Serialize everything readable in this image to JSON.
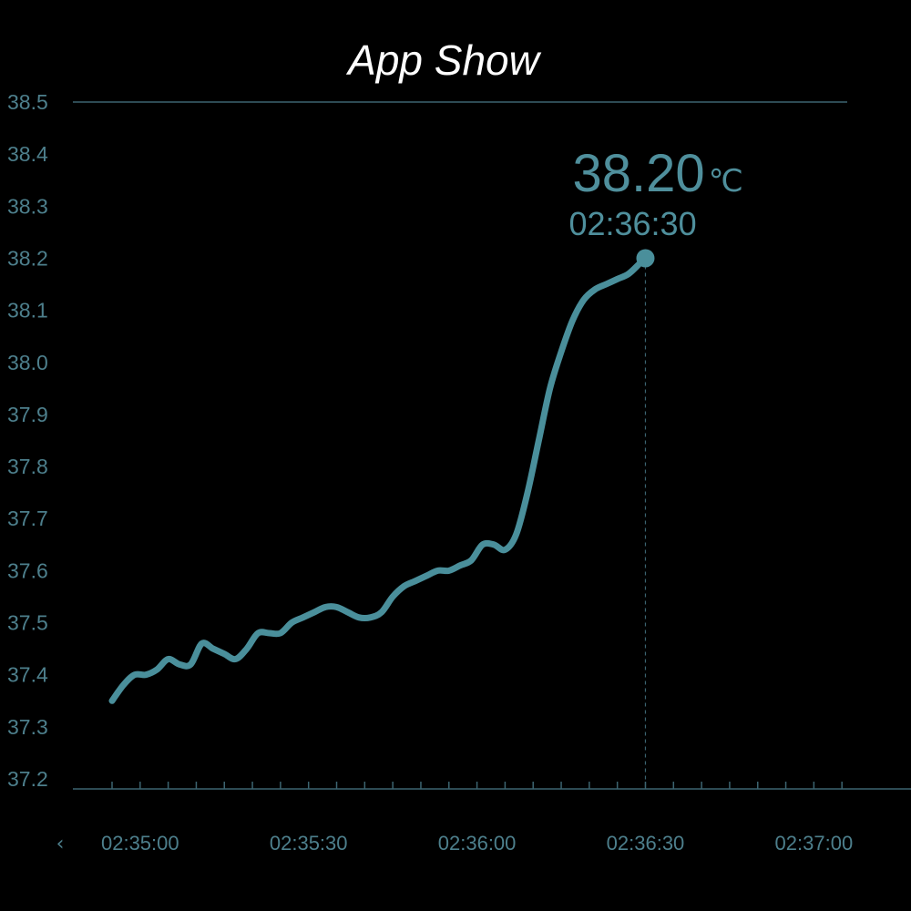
{
  "app": {
    "title": "App Show"
  },
  "colors": {
    "background": "#000000",
    "line": "#4a8f9b",
    "axis": "#3c6470",
    "label": "#4d7f8c",
    "readout": "#4f8f9c"
  },
  "nav": {
    "prev_icon": "chevron-left-icon",
    "prev_glyph": "‹"
  },
  "readout": {
    "value": "38.20",
    "unit": "℃",
    "time": "02:36:30"
  },
  "chart_data": {
    "type": "line",
    "title": "",
    "xlabel": "",
    "ylabel": "",
    "ylim": [
      37.2,
      38.5
    ],
    "xlim": [
      "02:34:55",
      "02:37:10"
    ],
    "y_ticks": [
      "37.2",
      "37.3",
      "37.4",
      "37.5",
      "37.6",
      "37.7",
      "37.8",
      "37.9",
      "38.0",
      "38.1",
      "38.2",
      "38.3",
      "38.4",
      "38.5"
    ],
    "x_tick_labels": [
      "02:35:00",
      "02:35:30",
      "02:36:00",
      "02:36:30",
      "02:37:00"
    ],
    "x_minor_ticks": [
      "02:34:55",
      "02:35:00",
      "02:35:05",
      "02:35:10",
      "02:35:15",
      "02:35:20",
      "02:35:25",
      "02:35:30",
      "02:35:35",
      "02:35:40",
      "02:35:45",
      "02:35:50",
      "02:35:55",
      "02:36:00",
      "02:36:05",
      "02:36:10",
      "02:36:15",
      "02:36:20",
      "02:36:25",
      "02:36:30",
      "02:36:35",
      "02:36:40",
      "02:36:45",
      "02:36:50",
      "02:36:55",
      "02:37:00",
      "02:37:05"
    ],
    "grid": false,
    "series": [
      {
        "x": [
          "02:34:55",
          "02:34:57",
          "02:34:59",
          "02:35:01",
          "02:35:03",
          "02:35:05",
          "02:35:07",
          "02:35:09",
          "02:35:11",
          "02:35:13",
          "02:35:15",
          "02:35:17",
          "02:35:19",
          "02:35:21",
          "02:35:23",
          "02:35:25",
          "02:35:27",
          "02:35:29",
          "02:35:31",
          "02:35:33",
          "02:35:35",
          "02:35:37",
          "02:35:39",
          "02:35:41",
          "02:35:43",
          "02:35:45",
          "02:35:47",
          "02:35:49",
          "02:35:51",
          "02:35:53",
          "02:35:55",
          "02:35:57",
          "02:35:59",
          "02:36:01",
          "02:36:03",
          "02:36:05",
          "02:36:07",
          "02:36:09",
          "02:36:11",
          "02:36:13",
          "02:36:15",
          "02:36:17",
          "02:36:19",
          "02:36:21",
          "02:36:23",
          "02:36:25",
          "02:36:27",
          "02:36:29",
          "02:36:30"
        ],
        "y": [
          37.35,
          37.38,
          37.4,
          37.4,
          37.41,
          37.43,
          37.42,
          37.42,
          37.46,
          37.45,
          37.44,
          37.43,
          37.45,
          37.48,
          37.48,
          37.48,
          37.5,
          37.51,
          37.52,
          37.53,
          37.53,
          37.52,
          37.51,
          37.51,
          37.52,
          37.55,
          37.57,
          37.58,
          37.59,
          37.6,
          37.6,
          37.61,
          37.62,
          37.65,
          37.65,
          37.64,
          37.67,
          37.75,
          37.85,
          37.95,
          38.02,
          38.08,
          38.12,
          38.14,
          38.15,
          38.16,
          38.17,
          38.19,
          38.2
        ]
      }
    ],
    "highlight": {
      "x": "02:36:30",
      "y": 38.2
    }
  }
}
